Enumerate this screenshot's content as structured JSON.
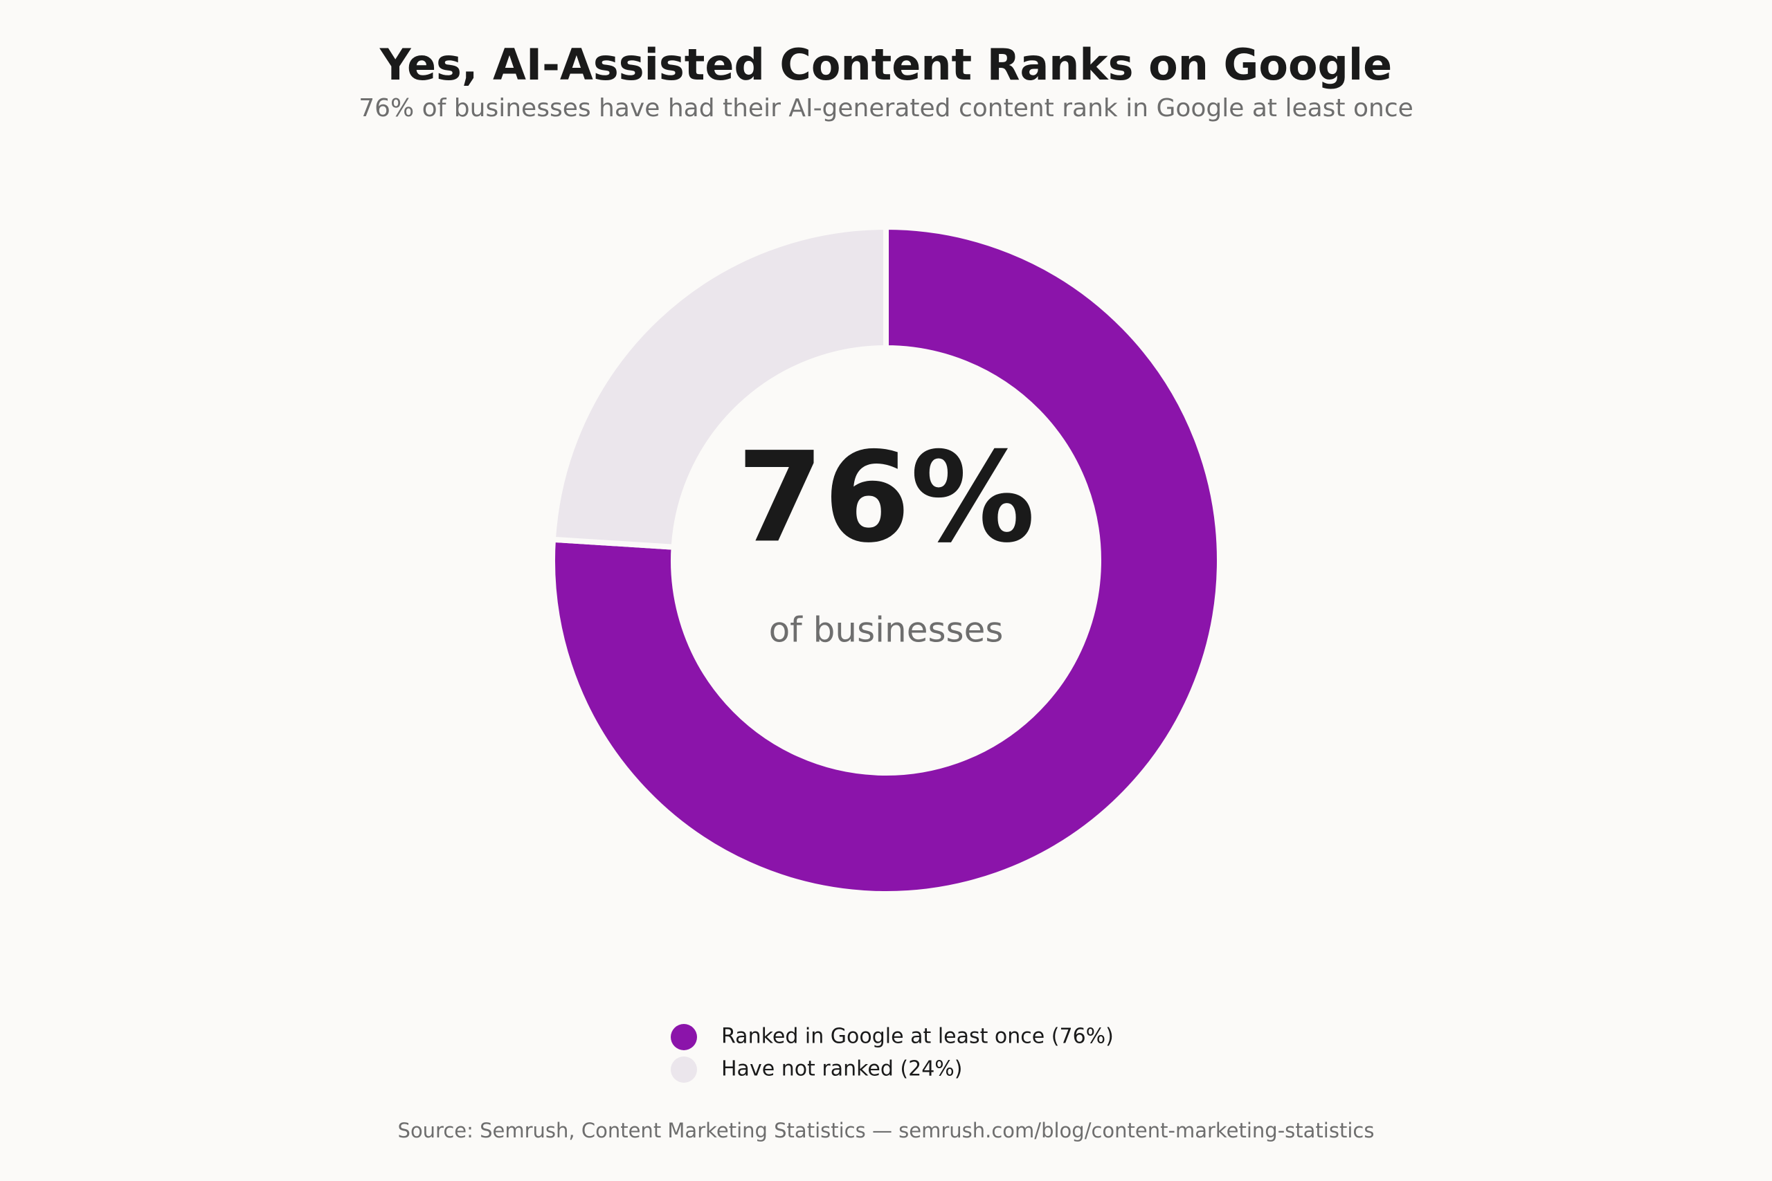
{
  "chart_data": {
    "type": "donut",
    "title": "Yes, AI-Assisted Content Ranks on Google",
    "subtitle": "76% of businesses have had their AI-generated content rank in Google at least once",
    "categories": [
      "Ranked in Google at least once (76%)",
      "Have not ranked (24%)"
    ],
    "values": [
      76,
      24
    ],
    "colors": [
      "#8b14aa",
      "#ebe6ec"
    ],
    "center_text": "76%",
    "center_subtext": "of businesses",
    "source": "Source: Semrush, Content Marketing Statistics — semrush.com/blog/content-marketing-statistics"
  }
}
